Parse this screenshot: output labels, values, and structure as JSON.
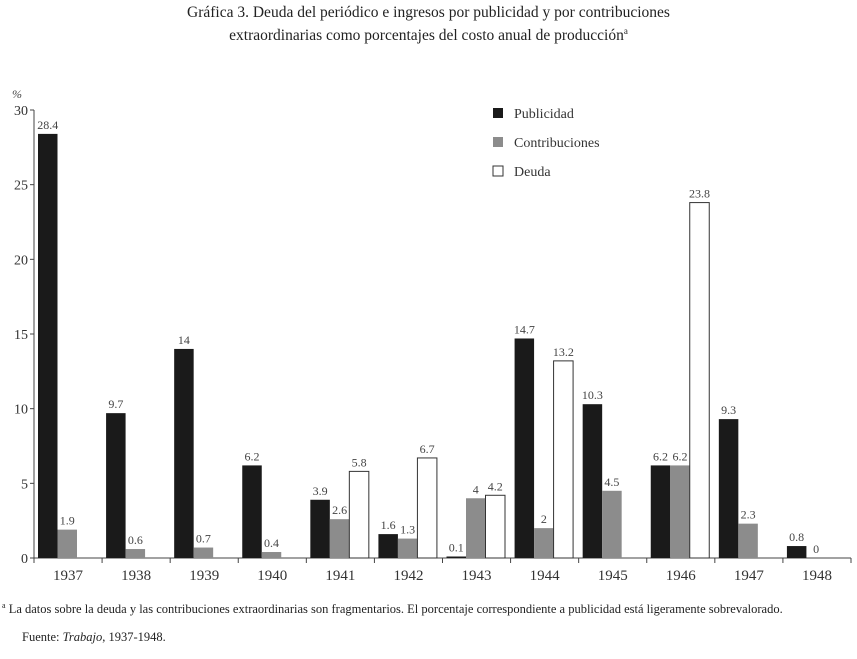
{
  "title_line1": "Gráfica 3. Deuda del periódico e ingresos por publicidad y por contribuciones",
  "title_line2": "extraordinarias como porcentajes del costo anual de producción",
  "title_mark": "a",
  "chart_data": {
    "type": "bar",
    "title": "Gráfica 3. Deuda del periódico e ingresos por publicidad y por contribuciones extraordinarias como porcentajes del costo anual de producción",
    "xlabel": "",
    "ylabel": "%",
    "ylim": [
      0,
      30
    ],
    "yticks": [
      0,
      5,
      10,
      15,
      20,
      25,
      30
    ],
    "grid": false,
    "legend_position": "top-right",
    "categories": [
      "1937",
      "1938",
      "1939",
      "1940",
      "1941",
      "1942",
      "1943",
      "1944",
      "1945",
      "1946",
      "1947",
      "1948"
    ],
    "series": [
      {
        "name": "Publicidad",
        "color": "#1a1a1a",
        "values": [
          28.4,
          9.7,
          14,
          6.2,
          3.9,
          1.6,
          0.1,
          14.7,
          10.3,
          6.2,
          9.3,
          0.8
        ]
      },
      {
        "name": "Contribuciones",
        "color": "#8c8c8c",
        "values": [
          1.9,
          0.6,
          0.7,
          0.4,
          2.6,
          1.3,
          4,
          2,
          4.5,
          6.2,
          2.3,
          0
        ]
      },
      {
        "name": "Deuda",
        "color": "#ffffff",
        "values": [
          null,
          null,
          null,
          null,
          5.8,
          6.7,
          4.2,
          13.2,
          null,
          23.8,
          null,
          null
        ]
      }
    ]
  },
  "footnote_mark": "a",
  "footnote": "La datos sobre la deuda y las contribuciones extraordinarias son fragmentarios. El porcentaje correspondiente a publicidad está ligeramente sobrevalorado.",
  "source_label": "Fuente: ",
  "source_title": "Trabajo",
  "source_years": ", 1937-1948."
}
